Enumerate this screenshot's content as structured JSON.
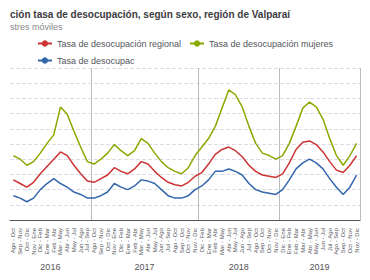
{
  "chart_data": {
    "type": "line",
    "title": "ción tasa de desocupación, según sexo, región de Valparaí",
    "subtitle": "stres móviles",
    "categories": [
      "Ago - Oct",
      "Sep - Nov",
      "Oct - Dic",
      "Nov - Ene",
      "Dic - Feb",
      "Ene - Mar",
      "Feb - Abr",
      "Mar - May",
      "Abr - Jun",
      "May - Jul",
      "Jun - Ago",
      "Jul - Sep",
      "Ago - Oct",
      "Sep - Nov",
      "Oct - Dic",
      "Nov - Ene",
      "Dic - Feb",
      "Ene - Mar",
      "Feb - Abr",
      "Mar - May",
      "Abr - Jun",
      "May - Jul",
      "Jun - Ago",
      "Jul - Sep",
      "Ago - Oct",
      "Sep - Oct",
      "Oct - Nov",
      "Nov - Dic",
      "Dic - Feb",
      "Ene - Mar",
      "Feb - Abr",
      "Mar - May",
      "Abr - Jun",
      "May - Jul",
      "Jun - Ago",
      "Jul - Sep",
      "Ago - Oct",
      "Sep - Oct",
      "Oct - Nov",
      "Nov - Dic",
      "Dic - Ene",
      "Ene - Feb",
      "Feb - Mar",
      "Mar - Abr",
      "Abr - May",
      "May - Jun",
      "Jun - Jul",
      "Jul - Ago",
      "Ago - Sep",
      "Sep - Oct",
      "Oct - Nov",
      "Nov - Dic"
    ],
    "series": [
      {
        "name": "Tasa de desocupación regional",
        "color": "#cc3333",
        "values": [
          7.8,
          7.5,
          7.2,
          7.6,
          8.3,
          8.9,
          9.5,
          10.1,
          9.8,
          9.0,
          8.3,
          7.7,
          7.6,
          7.9,
          8.2,
          8.8,
          8.5,
          8.3,
          8.7,
          9.3,
          9.1,
          8.5,
          8.0,
          7.6,
          7.4,
          7.3,
          7.6,
          8.1,
          8.4,
          9.1,
          9.9,
          10.3,
          10.5,
          10.2,
          9.7,
          9.0,
          8.5,
          8.2,
          8.1,
          8.0,
          8.3,
          9.2,
          10.3,
          10.9,
          11.0,
          10.7,
          10.1,
          9.3,
          8.6,
          8.4,
          9.0,
          9.8
        ]
      },
      {
        "name": "Tasa de desocupación mujeres",
        "color": "#88aa00",
        "values": [
          9.8,
          9.5,
          9.0,
          9.3,
          10.0,
          10.8,
          11.5,
          13.8,
          13.2,
          11.8,
          10.5,
          9.3,
          9.1,
          9.5,
          10.0,
          10.7,
          10.2,
          9.8,
          10.2,
          11.2,
          10.8,
          10.0,
          9.3,
          8.8,
          8.5,
          8.3,
          8.8,
          9.8,
          10.5,
          11.2,
          12.2,
          13.7,
          15.2,
          14.8,
          13.8,
          12.2,
          10.8,
          10.0,
          9.8,
          9.5,
          9.8,
          10.8,
          12.2,
          13.7,
          14.2,
          13.8,
          12.8,
          11.2,
          9.8,
          9.0,
          9.8,
          10.8
        ]
      },
      {
        "name": "Tasa de desocupac",
        "color": "#3366aa",
        "values": [
          6.5,
          6.3,
          6.0,
          6.3,
          7.0,
          7.5,
          7.9,
          7.5,
          7.2,
          6.8,
          6.6,
          6.3,
          6.3,
          6.5,
          6.8,
          7.5,
          7.2,
          7.0,
          7.3,
          7.8,
          7.7,
          7.5,
          7.0,
          6.5,
          6.3,
          6.3,
          6.5,
          7.0,
          7.3,
          7.8,
          8.5,
          8.5,
          8.7,
          8.5,
          8.2,
          7.5,
          7.0,
          6.8,
          6.7,
          6.6,
          7.0,
          7.8,
          8.7,
          9.2,
          9.5,
          9.2,
          8.7,
          7.9,
          7.2,
          6.6,
          7.2,
          8.2
        ]
      }
    ],
    "ylim": [
      4.5,
      17
    ],
    "yticks": [
      4.5,
      5.75,
      7,
      8.25,
      9.5,
      10.75,
      12,
      13.25,
      14.5,
      15.75,
      17
    ],
    "grid": true,
    "legend": "top",
    "tick_labels": "x",
    "annotations": [
      {
        "text": "2016",
        "start": 0
      },
      {
        "text": "2017",
        "start": 12
      },
      {
        "text": "2018",
        "start": 28
      },
      {
        "text": "2019",
        "start": 40
      }
    ]
  }
}
